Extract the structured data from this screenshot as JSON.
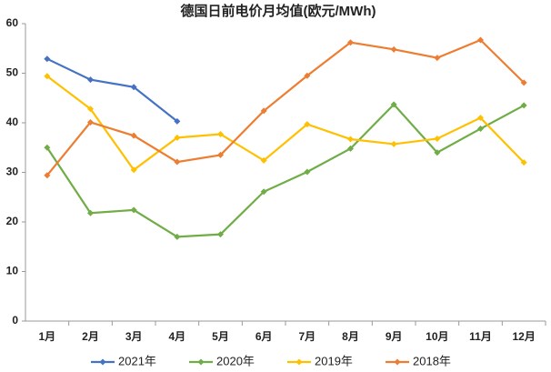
{
  "chart_data": {
    "type": "line",
    "title": "德国日前电价月均值(欧元/MWh)",
    "categories": [
      "1月",
      "2月",
      "3月",
      "4月",
      "5月",
      "6月",
      "7月",
      "8月",
      "9月",
      "10月",
      "11月",
      "12月"
    ],
    "series": [
      {
        "name": "2021年",
        "color": "#4472c4",
        "values": [
          52.9,
          48.7,
          47.2,
          40.3,
          null,
          null,
          null,
          null,
          null,
          null,
          null,
          null
        ]
      },
      {
        "name": "2020年",
        "color": "#70ad47",
        "values": [
          35,
          21.8,
          22.4,
          17,
          17.5,
          26.1,
          30.1,
          34.8,
          43.7,
          34,
          38.8,
          43.5
        ]
      },
      {
        "name": "2019年",
        "color": "#ffc000",
        "values": [
          49.4,
          42.8,
          30.5,
          37,
          37.7,
          32.4,
          39.7,
          36.7,
          35.7,
          36.8,
          41,
          32
        ]
      },
      {
        "name": "2018年",
        "color": "#ed7d31",
        "values": [
          29.4,
          40.1,
          37.4,
          32.1,
          33.5,
          42.4,
          49.5,
          56.2,
          54.8,
          53.1,
          56.7,
          48.1
        ]
      }
    ],
    "ylim": [
      0,
      60
    ],
    "yticks": [
      0,
      10,
      20,
      30,
      40,
      50,
      60
    ],
    "grid": false,
    "legend": "bottom"
  }
}
